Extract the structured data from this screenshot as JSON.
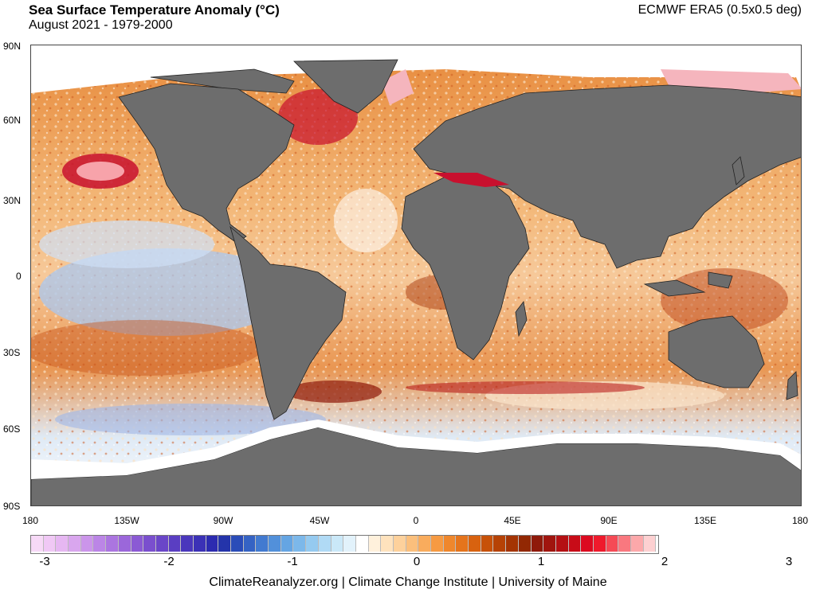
{
  "title": "Sea Surface Temperature Anomaly (°C)",
  "subtitle": "August 2021 - 1979-2000",
  "source": "ECMWF ERA5 (0.5x0.5 deg)",
  "footer": "ClimateReanalyzer.org | Climate Change Institute | University of Maine",
  "lat_labels": [
    "90N",
    "60N",
    "30N",
    "0",
    "30S",
    "60S",
    "90S"
  ],
  "lon_labels": [
    "180",
    "135W",
    "90W",
    "45W",
    "0",
    "45E",
    "90E",
    "135E",
    "180"
  ],
  "colorbar_ticks": [
    "-3",
    "-2",
    "-1",
    "0",
    "1",
    "2",
    "3"
  ],
  "colors": {
    "land": "#6d6d6d",
    "ice": "#ffffff",
    "warm": "#c8102e",
    "cool": "#4a6fd8"
  },
  "colorbar_colors": [
    "#f7d9f7",
    "#f0c8f5",
    "#e6b7f2",
    "#d9a6ee",
    "#cb95ea",
    "#bb85e6",
    "#ab75e0",
    "#9b67da",
    "#8b5ad4",
    "#7a4fce",
    "#6a46c8",
    "#5a3ec2",
    "#4a37bc",
    "#3b31b6",
    "#2c2bb0",
    "#2434aa",
    "#2a4cb8",
    "#3563c4",
    "#427ad0",
    "#5290da",
    "#65a5e3",
    "#7cb8ea",
    "#95caf0",
    "#b0daf5",
    "#cae8f8",
    "#e2f2fb",
    "#ffffff",
    "#fff1dc",
    "#fee2bd",
    "#fdd19c",
    "#fbbf7c",
    "#f9ac5d",
    "#f69a42",
    "#ef872c",
    "#e5741c",
    "#d8620f",
    "#c75108",
    "#b64205",
    "#a43403",
    "#922803",
    "#8f1a0a",
    "#a0150e",
    "#b41013",
    "#c80c18",
    "#dc0a20",
    "#ef1a2c",
    "#f54a55",
    "#f9787f",
    "#fca8aa",
    "#fdd0d1"
  ]
}
